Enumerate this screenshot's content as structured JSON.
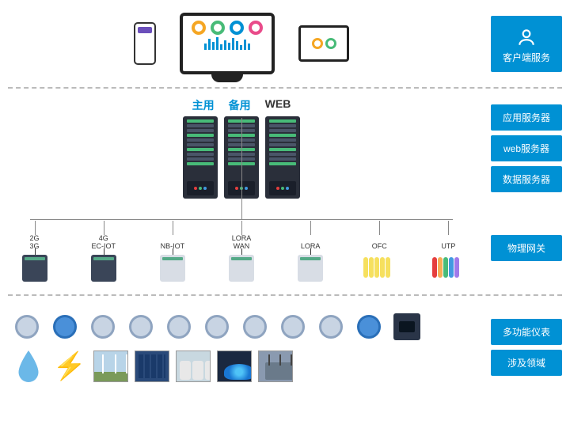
{
  "colors": {
    "primary": "#0091d4",
    "server_bg": "#2a2f3a",
    "divider": "#bbbbbb",
    "donut_colors": [
      "#f5a623",
      "#48bb78",
      "#0091d4",
      "#e94b8a"
    ]
  },
  "tier1": {
    "label": "客户端服务",
    "devices": [
      "phone",
      "monitor",
      "tablet"
    ],
    "monitor_bars": [
      8,
      14,
      10,
      16,
      7,
      12,
      9,
      15,
      11,
      6,
      13,
      8
    ]
  },
  "tier2": {
    "labels": [
      "应用服务器",
      "web服务器",
      "数据服务器"
    ],
    "server_titles": [
      "主用",
      "备用",
      "WEB"
    ],
    "title_colors": [
      "#0091d4",
      "#0091d4",
      "#333333"
    ],
    "server_count": 3,
    "led_colors": [
      "#e53e3e",
      "#48bb78",
      "#4299e1"
    ]
  },
  "tier3": {
    "label": "物理网关",
    "gateways": [
      {
        "label": "2G\n3G",
        "type": "box-dark"
      },
      {
        "label": "4G\nEC-IOT",
        "type": "box-dark"
      },
      {
        "label": "NB-IOT",
        "type": "box-light"
      },
      {
        "label": "LORA\nWAN",
        "type": "box-light"
      },
      {
        "label": "LORA",
        "type": "box-light"
      },
      {
        "label": "OFC",
        "type": "cables-yellow"
      },
      {
        "label": "UTP",
        "type": "cables-mix"
      }
    ],
    "cable_yellow": "#f6e05e",
    "cable_colors": [
      "#e53e3e",
      "#f6ad55",
      "#48bb78",
      "#4299e1",
      "#9f7aea"
    ]
  },
  "tier4": {
    "labels": [
      "多功能仪表",
      "涉及领域"
    ],
    "meter_count": 11,
    "meter_types": [
      "circle",
      "circle-blue",
      "circle",
      "circle",
      "circle",
      "circle",
      "circle",
      "circle",
      "circle",
      "circle-blue",
      "square"
    ],
    "domain_items": [
      {
        "type": "drop",
        "color": "#6bb8e8"
      },
      {
        "type": "bolt"
      },
      {
        "type": "photo",
        "bg": "#b8d4e8",
        "overlay": "wind"
      },
      {
        "type": "photo",
        "bg": "#2a4a7a",
        "overlay": "solar"
      },
      {
        "type": "photo",
        "bg": "#c8d8e0",
        "overlay": "tanks"
      },
      {
        "type": "photo",
        "bg": "#1a2840",
        "overlay": "flame"
      },
      {
        "type": "photo",
        "bg": "#8a9ab0",
        "overlay": "transformer"
      }
    ]
  }
}
